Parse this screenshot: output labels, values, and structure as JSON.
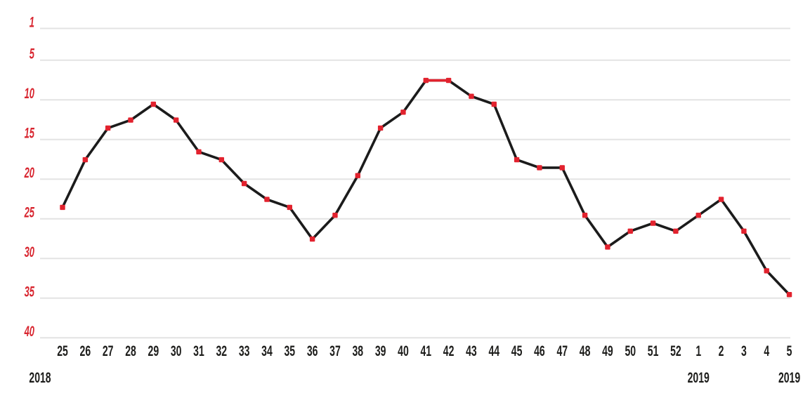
{
  "chart_data": {
    "type": "line",
    "title": "",
    "xlabel": "",
    "ylabel": "",
    "x_categories": [
      "25",
      "26",
      "27",
      "28",
      "29",
      "30",
      "31",
      "32",
      "33",
      "34",
      "35",
      "36",
      "37",
      "38",
      "39",
      "40",
      "41",
      "42",
      "43",
      "44",
      "45",
      "46",
      "47",
      "48",
      "49",
      "50",
      "51",
      "52",
      "1",
      "2",
      "3",
      "4",
      "5"
    ],
    "values": [
      24,
      18,
      14,
      13,
      11,
      13,
      17,
      18,
      21,
      23,
      24,
      28,
      25,
      20,
      14,
      12,
      8,
      8,
      10,
      11,
      18,
      19,
      19,
      25,
      29,
      27,
      26,
      27,
      25,
      23,
      27,
      32,
      35
    ],
    "y_ticks": [
      1,
      5,
      10,
      15,
      20,
      25,
      30,
      35,
      40
    ],
    "ylim": [
      1,
      40
    ],
    "y_axis_inverted": true,
    "grid": "horizontal-only",
    "legend": "none",
    "peak_highlight": {
      "from_category": "41",
      "to_category": "42",
      "from_index": 16,
      "to_index": 17,
      "value": 8
    },
    "year_labels": [
      {
        "label": "2018",
        "anchor": "axis-start"
      },
      {
        "label": "2019",
        "anchor": "category",
        "category_index": 28
      },
      {
        "label": "2019",
        "anchor": "axis-end"
      }
    ],
    "colors": {
      "accent_red": "#e2222e",
      "tick_label_red": "#d8252f",
      "line_black": "#1b1b1b",
      "x_label_black": "#1d1d1b",
      "gridline_gray": "#e3e3e3",
      "background": "#ffffff"
    },
    "marker": "square"
  }
}
